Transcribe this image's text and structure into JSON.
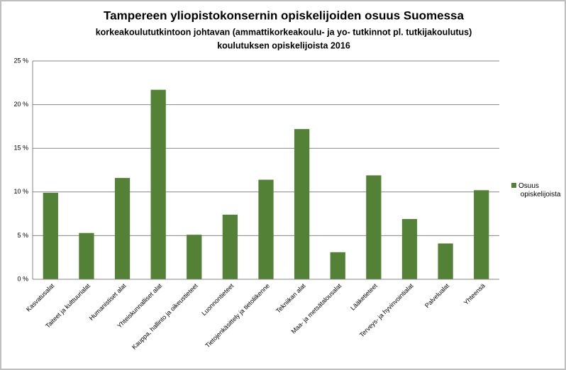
{
  "chart_data": {
    "type": "bar",
    "title": "Tampereen yliopistokonsernin opiskelijoiden osuus Suomessa",
    "subtitle": [
      "korkeakoulututkintoon johtavan (ammattikorkeakoulu- ja yo- tutkinnot pl. tutkijakoulutus)",
      "koulutuksen opiskelijoista 2016"
    ],
    "categories": [
      "Kasvatusalat",
      "Taiteet ja kulttuurialat",
      "Humanistiset alat",
      "Yhteiskunnalliset alat",
      "Kauppa, hallinto ja oikeustieteet",
      "Luonnontieteet",
      "Tietojenkäsittely ja tietoliikenne",
      "Tekniikan alat",
      "Maa- ja metsätalousalat",
      "Lääketieteet",
      "Terveys- ja hyvinvointialat",
      "Palvelualat",
      "Yhteensä"
    ],
    "series": [
      {
        "name": "Osuus opiskelijoista",
        "color": "#538135",
        "values": [
          9.9,
          5.3,
          11.6,
          21.7,
          5.1,
          7.4,
          11.4,
          17.2,
          3.1,
          11.9,
          6.9,
          4.1,
          10.2
        ]
      }
    ],
    "ylim": [
      0,
      25
    ],
    "yticks": [
      {
        "value": 0,
        "label": "0 %"
      },
      {
        "value": 5,
        "label": "5 %"
      },
      {
        "value": 10,
        "label": "10 %"
      },
      {
        "value": 15,
        "label": "15 %"
      },
      {
        "value": 20,
        "label": "20 %"
      },
      {
        "value": 25,
        "label": "25 %"
      }
    ],
    "grid": true,
    "legend": "right"
  }
}
